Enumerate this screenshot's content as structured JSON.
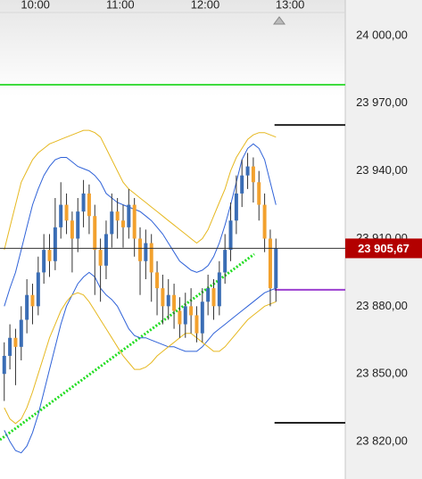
{
  "chart_data": {
    "type": "candlestick",
    "x": [
      578,
      582,
      586,
      590,
      594,
      598,
      602,
      606,
      610,
      614,
      618,
      622,
      626,
      630,
      634,
      638,
      642,
      646,
      650,
      654,
      658,
      662,
      666,
      670,
      674,
      678,
      682,
      686,
      690,
      694,
      698,
      702,
      706,
      710,
      714,
      718,
      722,
      726,
      730,
      734,
      738,
      742,
      746,
      750,
      754,
      758,
      762,
      766,
      770
    ],
    "open": [
      23850,
      23858,
      23866,
      23862,
      23874,
      23885,
      23880,
      23895,
      23905,
      23900,
      23915,
      23925,
      23918,
      23910,
      23922,
      23930,
      23920,
      23905,
      23898,
      23912,
      23922,
      23918,
      23915,
      23925,
      23910,
      23900,
      23908,
      23895,
      23888,
      23880,
      23885,
      23878,
      23872,
      23880,
      23876,
      23868,
      23882,
      23888,
      23880,
      23895,
      23905,
      23918,
      23930,
      23938,
      23942,
      23935,
      23925,
      23910,
      23888
    ],
    "high": [
      23864,
      23872,
      23870,
      23880,
      23892,
      23890,
      23902,
      23912,
      23912,
      23928,
      23935,
      23930,
      23922,
      23928,
      23936,
      23934,
      23925,
      23910,
      23918,
      23930,
      23928,
      23925,
      23932,
      23928,
      23915,
      23914,
      23912,
      23900,
      23894,
      23892,
      23890,
      23884,
      23886,
      23888,
      23880,
      23888,
      23894,
      23892,
      23900,
      23912,
      23926,
      23938,
      23945,
      23948,
      23946,
      23940,
      23930,
      23914,
      23910
    ],
    "low": [
      23838,
      23852,
      23845,
      23856,
      23868,
      23872,
      23876,
      23890,
      23893,
      23896,
      23910,
      23912,
      23895,
      23904,
      23915,
      23912,
      23885,
      23882,
      23892,
      23906,
      23910,
      23906,
      23910,
      23902,
      23885,
      23892,
      23882,
      23876,
      23872,
      23874,
      23870,
      23866,
      23866,
      23868,
      23864,
      23864,
      23876,
      23874,
      23876,
      23890,
      23900,
      23912,
      23924,
      23932,
      23926,
      23918,
      23904,
      23880,
      23882
    ],
    "close": [
      23858,
      23866,
      23862,
      23874,
      23885,
      23880,
      23895,
      23905,
      23900,
      23915,
      23925,
      23918,
      23910,
      23922,
      23930,
      23920,
      23905,
      23898,
      23912,
      23922,
      23918,
      23915,
      23925,
      23910,
      23900,
      23908,
      23895,
      23888,
      23880,
      23885,
      23878,
      23872,
      23880,
      23876,
      23868,
      23882,
      23888,
      23880,
      23895,
      23905,
      23918,
      23930,
      23938,
      23942,
      23935,
      23925,
      23910,
      23888,
      23905.67
    ],
    "up_color": "#3a6db5",
    "down_color": "#f2a12e",
    "overlays": [
      {
        "color": "#2f62d8",
        "values": [
          23880,
          23888,
          23895,
          23905,
          23915,
          23925,
          23932,
          23938,
          23942,
          23945,
          23946,
          23946,
          23944,
          23942,
          23941,
          23940,
          23938,
          23935,
          23930,
          23928,
          23926,
          23925,
          23924,
          23923,
          23922,
          23920,
          23918,
          23915,
          23912,
          23908,
          23904,
          23900,
          23898,
          23896,
          23895,
          23896,
          23898,
          23902,
          23908,
          23916,
          23925,
          23935,
          23945,
          23950,
          23952,
          23950,
          23945,
          23935,
          23925
        ]
      },
      {
        "color": "#2f62d8",
        "values": [
          23825,
          23820,
          23816,
          23815,
          23818,
          23824,
          23832,
          23842,
          23852,
          23862,
          23872,
          23880,
          23885,
          23890,
          23893,
          23895,
          23893,
          23888,
          23885,
          23883,
          23880,
          23875,
          23870,
          23867,
          23866,
          23866,
          23865,
          23864,
          23863,
          23862,
          23862,
          23861,
          23860,
          23860,
          23860,
          23862,
          23865,
          23868,
          23870,
          23872,
          23874,
          23876,
          23878,
          23880,
          23882,
          23884,
          23886,
          23887,
          23888
        ]
      },
      {
        "color": "#e6b820",
        "values": [
          23905,
          23915,
          23925,
          23935,
          23940,
          23945,
          23948,
          23950,
          23952,
          23953,
          23954,
          23955,
          23956,
          23957,
          23958,
          23958,
          23957,
          23955,
          23950,
          23945,
          23940,
          23935,
          23932,
          23930,
          23928,
          23926,
          23924,
          23922,
          23920,
          23918,
          23916,
          23914,
          23912,
          23910,
          23908,
          23910,
          23914,
          23920,
          23926,
          23932,
          23940,
          23946,
          23950,
          23954,
          23956,
          23957,
          23957,
          23956,
          23955
        ]
      },
      {
        "color": "#e6b820",
        "values": [
          23835,
          23830,
          23828,
          23830,
          23835,
          23842,
          23850,
          23858,
          23866,
          23872,
          23878,
          23882,
          23885,
          23886,
          23885,
          23882,
          23878,
          23874,
          23870,
          23866,
          23862,
          23858,
          23855,
          23852,
          23852,
          23853,
          23855,
          23858,
          23860,
          23862,
          23864,
          23866,
          23868,
          23868,
          23866,
          23864,
          23862,
          23860,
          23860,
          23862,
          23865,
          23868,
          23871,
          23874,
          23876,
          23878,
          23880,
          23881,
          23882
        ]
      }
    ],
    "levels": [
      {
        "value": 23978.2,
        "color": "#3fdc3f"
      },
      {
        "value": 23960.4,
        "color": "#222222",
        "start": 769
      },
      {
        "value": 23887.3,
        "color": "#9b3fd0",
        "start": 769
      },
      {
        "value": 23828.3,
        "color": "#222222",
        "start": 769
      }
    ],
    "trend": {
      "x": [
        575,
        754.7
      ],
      "y": [
        23820.8,
        23903.1
      ],
      "color": "#22dd22"
    },
    "last_price": {
      "value": 23905.67,
      "label": "23 905,67",
      "color": "#b30000"
    },
    "xlim": [
      575,
      819
    ],
    "xticks": [
      {
        "value": 600,
        "label": "10:00"
      },
      {
        "value": 660,
        "label": "11:00"
      },
      {
        "value": 720,
        "label": "12:00"
      },
      {
        "value": 780,
        "label": "13:00"
      }
    ],
    "ylim": [
      23803.4,
      24015.8
    ],
    "yticks": [
      {
        "value": 24000,
        "label": "24 000,00"
      },
      {
        "value": 23970,
        "label": "23 970,00"
      },
      {
        "value": 23940,
        "label": "23 940,00"
      },
      {
        "value": 23910,
        "label": "23 910,00"
      },
      {
        "value": 23880,
        "label": "23 880,00"
      },
      {
        "value": 23850,
        "label": "23 850,00"
      },
      {
        "value": 23820,
        "label": "23 820,00"
      }
    ]
  }
}
